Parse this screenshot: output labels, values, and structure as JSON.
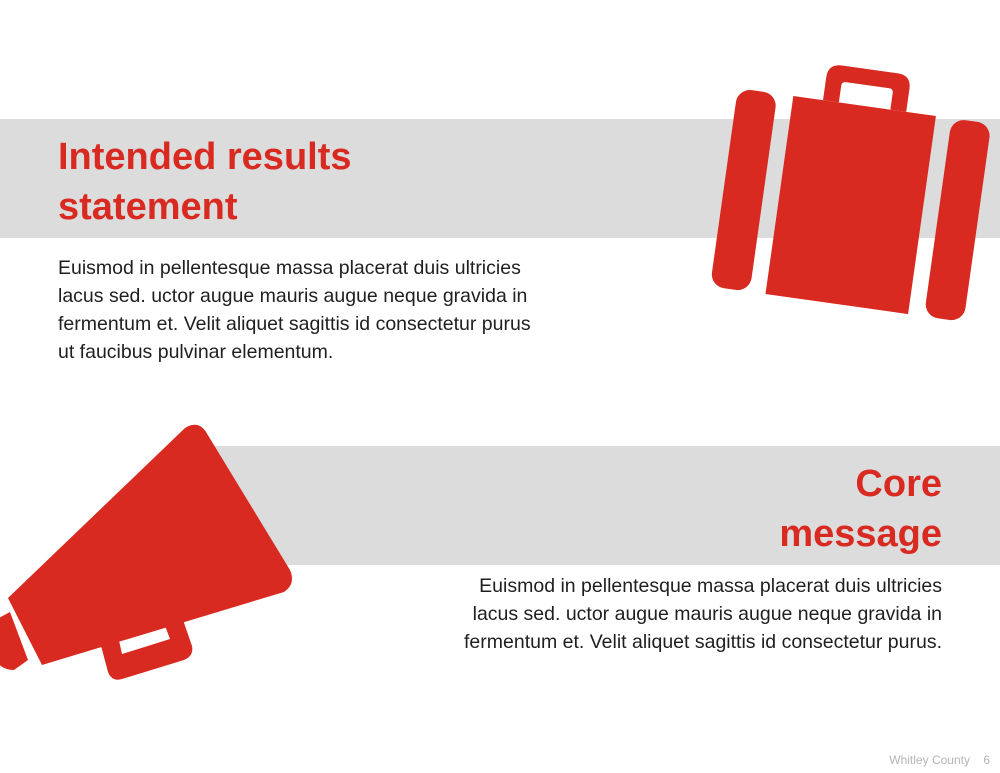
{
  "colors": {
    "accent": "#d82a20",
    "band": "#dcdcdc",
    "text": "#1f1f1f",
    "footer": "#b5b5b5"
  },
  "section1": {
    "title_lines": [
      "Intended results",
      "statement"
    ],
    "body_lines": [
      "Euismod in pellentesque massa placerat duis ultricies",
      "lacus sed. uctor augue mauris augue neque gravida in",
      "fermentum et. Velit aliquet sagittis id consectetur purus",
      "ut faucibus pulvinar elementum."
    ],
    "icon": "suitcase-icon"
  },
  "section2": {
    "title_lines": [
      "Core",
      "message"
    ],
    "body_lines": [
      "Euismod in pellentesque massa placerat duis ultricies",
      "lacus sed. uctor augue mauris augue neque gravida in",
      "fermentum et. Velit aliquet sagittis id consectetur purus."
    ],
    "icon": "megaphone-icon"
  },
  "footer": {
    "org": "Whitley County",
    "page": "6"
  }
}
